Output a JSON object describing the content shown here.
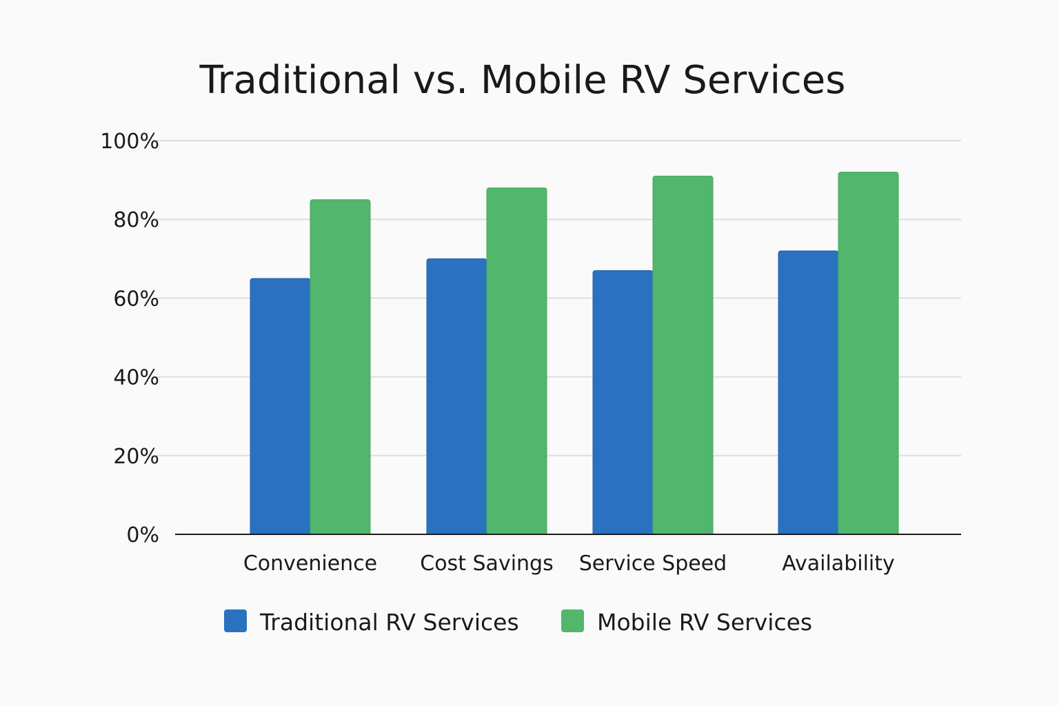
{
  "chart_data": {
    "type": "bar",
    "title": "Traditional vs. Mobile RV Services",
    "xlabel": "",
    "ylabel": "",
    "categories": [
      "Convenience",
      "Cost Savings",
      "Service Speed",
      "Availability"
    ],
    "series": [
      {
        "name": "Traditional RV Services",
        "color": "#2a72bf",
        "values": [
          65,
          70,
          67,
          72
        ]
      },
      {
        "name": "Mobile RV Services",
        "color": "#52b66d",
        "values": [
          85,
          88,
          91,
          92
        ]
      }
    ],
    "ylim": [
      0,
      100
    ],
    "yticks": [
      0,
      20,
      40,
      60,
      80,
      100
    ],
    "ytick_labels": [
      "0%",
      "20%",
      "40%",
      "60%",
      "80%",
      "100%"
    ],
    "grid": true,
    "legend_position": "bottom"
  }
}
